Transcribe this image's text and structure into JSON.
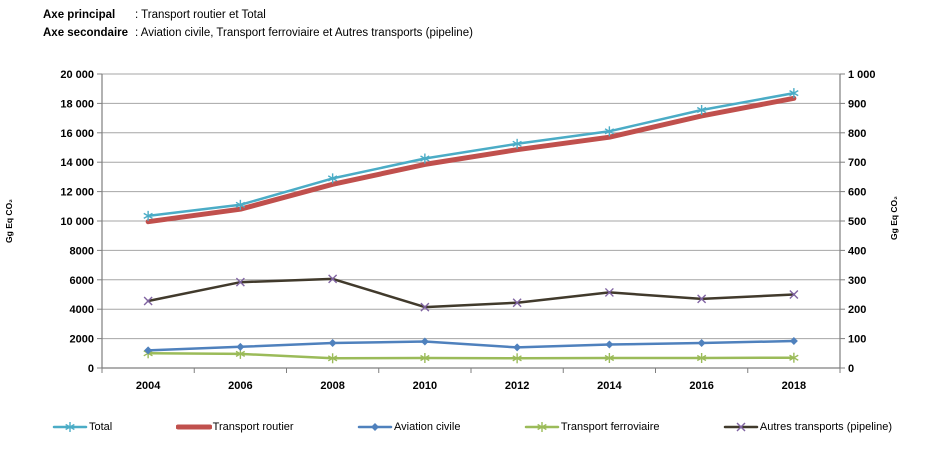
{
  "header": {
    "line1_label": "Axe principal",
    "line1_value": ": Transport routier et Total",
    "line2_label": "Axe secondaire",
    "line2_value": ": Aviation civile, Transport ferroviaire et Autres transports (pipeline)"
  },
  "chart_data": {
    "type": "line",
    "x": [
      "2004",
      "2006",
      "2008",
      "2010",
      "2012",
      "2014",
      "2016",
      "2018"
    ],
    "series": [
      {
        "name": "Transport routier",
        "axis": "left",
        "color": "#C0504D",
        "marker": "none",
        "marker_color": "#C0504D",
        "width": 5,
        "values": [
          9950,
          10800,
          12500,
          13850,
          14850,
          15700,
          17150,
          18350
        ]
      },
      {
        "name": "Total",
        "axis": "left",
        "color": "#4BACC6",
        "marker": "asterisk",
        "marker_color": "#4BACC6",
        "width": 2.5,
        "values": [
          10350,
          11100,
          12900,
          14250,
          15250,
          16100,
          17550,
          18700
        ]
      },
      {
        "name": "Transport ferroviaire",
        "axis": "right",
        "color": "#9BBB59",
        "marker": "asterisk",
        "marker_color": "#9BBB59",
        "width": 2.5,
        "values": [
          50,
          48,
          33,
          34,
          33,
          34,
          34,
          35
        ]
      },
      {
        "name": "Aviation civile",
        "axis": "right",
        "color": "#4F81BD",
        "marker": "diamond",
        "marker_color": "#4F81BD",
        "width": 2.5,
        "values": [
          60,
          72,
          85,
          90,
          70,
          80,
          85,
          92
        ]
      },
      {
        "name": "Autres transports (pipeline)",
        "axis": "right",
        "color": "#413A2C",
        "marker": "x",
        "marker_color": "#8064A2",
        "width": 2.5,
        "values": [
          228,
          292,
          303,
          207,
          222,
          257,
          235,
          250
        ]
      }
    ],
    "left_axis": {
      "title": "Gg Eq CO₂",
      "min": 0,
      "max": 20000,
      "step": 2000,
      "tick_labels": [
        "0",
        "2000",
        "4000",
        "6000",
        "8000",
        "10 000",
        "12 000",
        "14 000",
        "16 000",
        "18 000",
        "20 000"
      ]
    },
    "right_axis": {
      "title": "Gg Eq CO₂",
      "min": 0,
      "max": 1000,
      "step": 100,
      "tick_labels": [
        "0",
        "100",
        "200",
        "300",
        "400",
        "500",
        "600",
        "700",
        "800",
        "900",
        "1 000"
      ]
    },
    "grid": true,
    "legend_position": "bottom",
    "legend_order": [
      "Total",
      "Transport routier",
      "Aviation civile",
      "Transport ferroviaire",
      "Autres transports (pipeline)"
    ]
  },
  "colors": {
    "gridline": "#a6a6a6",
    "axis": "#7f7f7f",
    "text": "#000000"
  }
}
